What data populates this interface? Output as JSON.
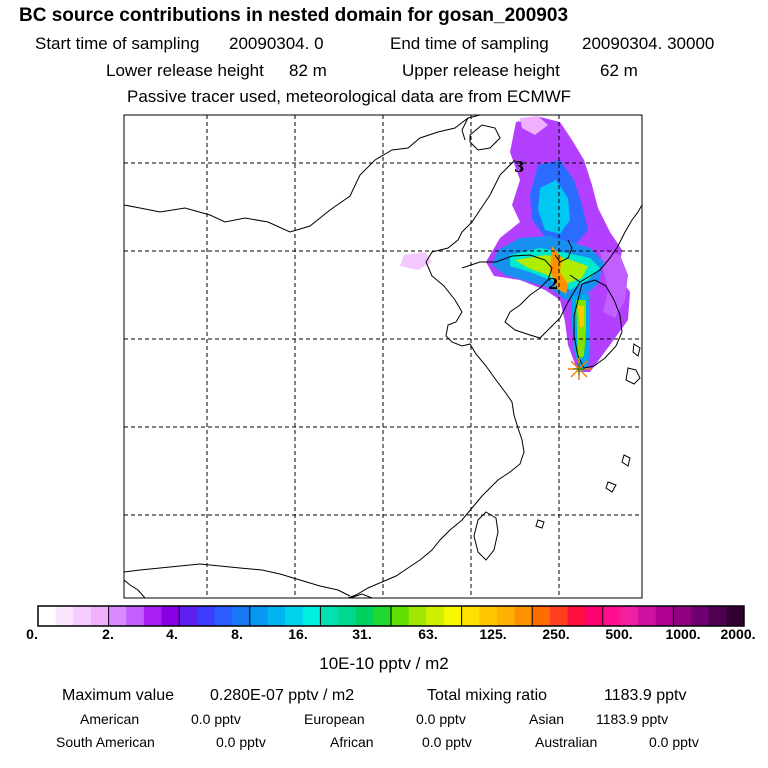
{
  "header": {
    "title": "BC  source contributions in nested domain for gosan_200903",
    "start_label": "Start time of sampling",
    "start_value": "20090304.    0",
    "end_label": "End time of sampling",
    "end_value": "20090304. 30000",
    "lower_label": "Lower release height",
    "lower_value": "82 m",
    "upper_label": "Upper release height",
    "upper_value": "62 m",
    "note": "Passive tracer used, meteorological data are from ECMWF"
  },
  "map": {
    "region": "East Asia (China, Korea, Japan, Taiwan)",
    "receptor_symbol": "*",
    "receptor_name": "gosan",
    "trajectory_labels": [
      "3",
      "2"
    ]
  },
  "legend": {
    "tick_labels": [
      "0.",
      "2.",
      "4.",
      "8.",
      "16.",
      "31.",
      "63.",
      "125.",
      "250.",
      "500.",
      "1000.",
      "2000."
    ],
    "units": "10E-10 pptv / m2",
    "colors": [
      "#ffffff",
      "#fbe6ff",
      "#f5ccff",
      "#eeb0ff",
      "#d88cff",
      "#c35eff",
      "#a820f5",
      "#8a00e6",
      "#5e20f0",
      "#3c3cff",
      "#2a5cff",
      "#1878f4",
      "#0898f0",
      "#00b4f0",
      "#00d2ec",
      "#00f0e0",
      "#00e0b0",
      "#00d890",
      "#00d060",
      "#20d830",
      "#60e000",
      "#a0e800",
      "#d0f000",
      "#f8f800",
      "#ffe000",
      "#ffc800",
      "#ffb000",
      "#ff9000",
      "#ff6c00",
      "#ff4020",
      "#ff1040",
      "#ff0070",
      "#ff1090",
      "#f020a0",
      "#d010a0",
      "#b00090",
      "#900080",
      "#700070",
      "#500050",
      "#300030"
    ]
  },
  "summary": {
    "max_label": "Maximum value",
    "max_value": "0.280E-07 pptv / m2",
    "total_label": "Total mixing ratio",
    "total_value": "1183.9 pptv",
    "regions": [
      {
        "name": "American",
        "value": "0.0 pptv"
      },
      {
        "name": "European",
        "value": "0.0 pptv"
      },
      {
        "name": "Asian",
        "value": "1183.9 pptv"
      },
      {
        "name": "South American",
        "value": "0.0 pptv"
      },
      {
        "name": "African",
        "value": "0.0 pptv"
      },
      {
        "name": "Australian",
        "value": "0.0 pptv"
      }
    ]
  }
}
